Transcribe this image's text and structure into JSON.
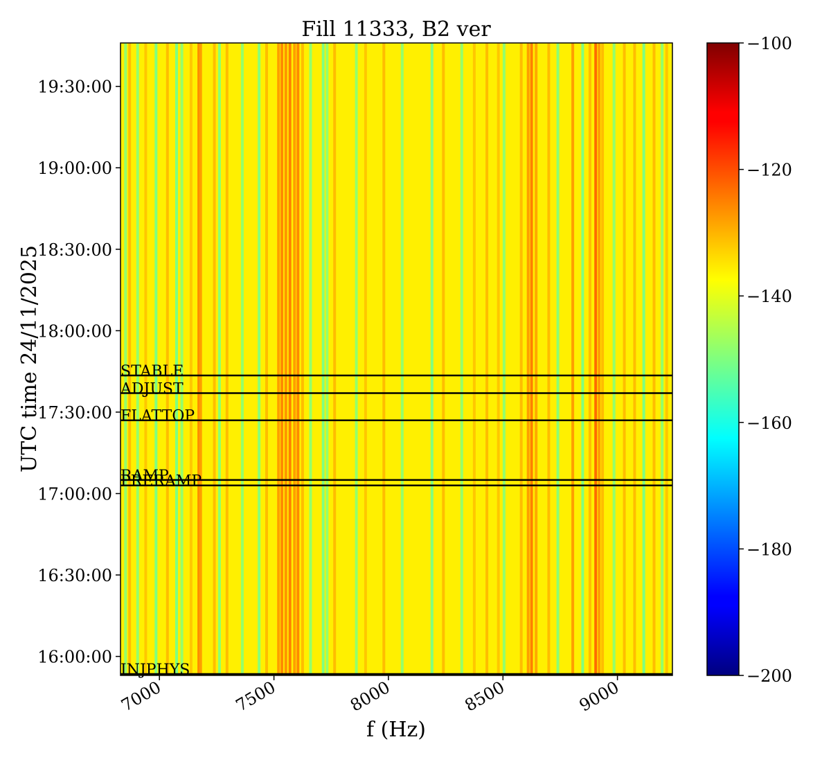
{
  "chart_data": {
    "type": "heatmap",
    "title": "Fill 11333, B2 ver",
    "xlabel": "f (Hz)",
    "ylabel": "UTC time 24/11/2025",
    "xlim": [
      6830,
      9240
    ],
    "ylim_time": [
      "15:53:00",
      "19:46:00"
    ],
    "x_ticks": [
      {
        "value": 7000,
        "label": "7000"
      },
      {
        "value": 7500,
        "label": "7500"
      },
      {
        "value": 8000,
        "label": "8000"
      },
      {
        "value": 8500,
        "label": "8500"
      },
      {
        "value": 9000,
        "label": "9000"
      }
    ],
    "y_ticks": [
      {
        "value": "16:00:00",
        "label": "16:00:00"
      },
      {
        "value": "16:30:00",
        "label": "16:30:00"
      },
      {
        "value": "17:00:00",
        "label": "17:00:00"
      },
      {
        "value": "17:30:00",
        "label": "17:30:00"
      },
      {
        "value": "18:00:00",
        "label": "18:00:00"
      },
      {
        "value": "18:30:00",
        "label": "18:30:00"
      },
      {
        "value": "19:00:00",
        "label": "19:00:00"
      },
      {
        "value": "19:30:00",
        "label": "19:30:00"
      }
    ],
    "colorbar": {
      "colormap": "jet",
      "range": [
        -200,
        -100
      ],
      "ticks": [
        {
          "value": -100,
          "label": "−100"
        },
        {
          "value": -120,
          "label": "−120"
        },
        {
          "value": -140,
          "label": "−140"
        },
        {
          "value": -160,
          "label": "−160"
        },
        {
          "value": -180,
          "label": "−180"
        },
        {
          "value": -200,
          "label": "−200"
        }
      ]
    },
    "background_level": -136,
    "spectral_lines": [
      {
        "f": 6852,
        "level": -148
      },
      {
        "f": 6870,
        "level": -131
      },
      {
        "f": 6905,
        "level": -148
      },
      {
        "f": 6940,
        "level": -132
      },
      {
        "f": 6985,
        "level": -150
      },
      {
        "f": 7035,
        "level": -131
      },
      {
        "f": 7075,
        "level": -150
      },
      {
        "f": 7098,
        "level": -148
      },
      {
        "f": 7138,
        "level": -132
      },
      {
        "f": 7172,
        "level": -126
      },
      {
        "f": 7180,
        "level": -128
      },
      {
        "f": 7240,
        "level": -131
      },
      {
        "f": 7262,
        "level": -149
      },
      {
        "f": 7295,
        "level": -131
      },
      {
        "f": 7362,
        "level": -148
      },
      {
        "f": 7435,
        "level": -149
      },
      {
        "f": 7468,
        "level": -131
      },
      {
        "f": 7520,
        "level": -128
      },
      {
        "f": 7535,
        "level": -126
      },
      {
        "f": 7552,
        "level": -127
      },
      {
        "f": 7570,
        "level": -125
      },
      {
        "f": 7590,
        "level": -128
      },
      {
        "f": 7605,
        "level": -126
      },
      {
        "f": 7625,
        "level": -131
      },
      {
        "f": 7660,
        "level": -148
      },
      {
        "f": 7715,
        "level": -150
      },
      {
        "f": 7732,
        "level": -148
      },
      {
        "f": 7765,
        "level": -131
      },
      {
        "f": 7860,
        "level": -148
      },
      {
        "f": 7900,
        "level": -132
      },
      {
        "f": 7980,
        "level": -131
      },
      {
        "f": 8060,
        "level": -148
      },
      {
        "f": 8190,
        "level": -150
      },
      {
        "f": 8240,
        "level": -131
      },
      {
        "f": 8320,
        "level": -148
      },
      {
        "f": 8375,
        "level": -132
      },
      {
        "f": 8430,
        "level": -131
      },
      {
        "f": 8480,
        "level": -132
      },
      {
        "f": 8505,
        "level": -148
      },
      {
        "f": 8580,
        "level": -131
      },
      {
        "f": 8610,
        "level": -128
      },
      {
        "f": 8625,
        "level": -125
      },
      {
        "f": 8645,
        "level": -129
      },
      {
        "f": 8700,
        "level": -131
      },
      {
        "f": 8740,
        "level": -149
      },
      {
        "f": 8805,
        "level": -128
      },
      {
        "f": 8848,
        "level": -150
      },
      {
        "f": 8880,
        "level": -131
      },
      {
        "f": 8905,
        "level": -123
      },
      {
        "f": 8920,
        "level": -128
      },
      {
        "f": 8935,
        "level": -131
      },
      {
        "f": 8985,
        "level": -148
      },
      {
        "f": 9030,
        "level": -131
      },
      {
        "f": 9075,
        "level": -131
      },
      {
        "f": 9115,
        "level": -150
      },
      {
        "f": 9160,
        "level": -131
      },
      {
        "f": 9195,
        "level": -148
      },
      {
        "f": 9215,
        "level": -132
      }
    ],
    "events": [
      {
        "name": "STABLE",
        "time": "17:43:30"
      },
      {
        "name": "ADJUST",
        "time": "17:37:00"
      },
      {
        "name": "FLATTOP",
        "time": "17:27:00"
      },
      {
        "name": "RAMP",
        "time": "17:05:00"
      },
      {
        "name": "PRERAMP",
        "time": "17:03:00"
      },
      {
        "name": "INJPHYS",
        "time": "15:53:30"
      }
    ]
  }
}
